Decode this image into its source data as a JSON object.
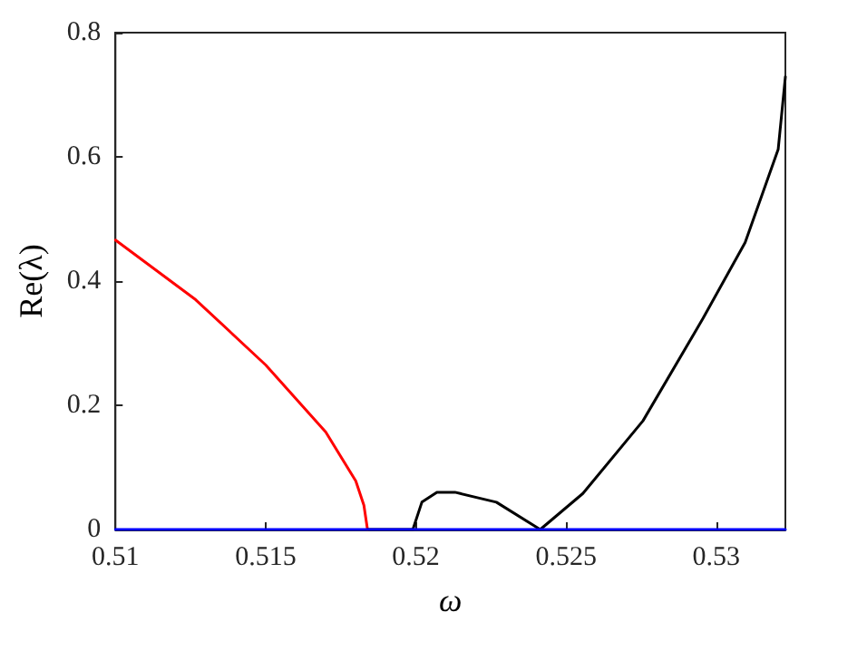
{
  "chart_data": {
    "type": "line",
    "xlabel": "ω",
    "ylabel": "Re(λ)",
    "xlim": [
      0.51,
      0.5323
    ],
    "xticks": [
      0.51,
      0.515,
      0.52,
      0.525,
      0.53
    ],
    "ylim": [
      0,
      0.8
    ],
    "yticks": [
      0,
      0.2,
      0.4,
      0.6,
      0.8
    ],
    "grid": false,
    "marker": "none",
    "line_style": "solid",
    "series": [
      {
        "color": "#ff0000",
        "x": [
          0.51,
          0.51267,
          0.515,
          0.517,
          0.518,
          0.51827,
          0.51839
        ],
        "values": [
          0.466,
          0.37,
          0.265,
          0.157,
          0.078,
          0.039,
          0
        ]
      },
      {
        "color": "#000000",
        "x": [
          0.51839,
          0.5199,
          0.5202,
          0.5207,
          0.5213,
          0.52268,
          0.52414,
          0.52556,
          0.52756,
          0.52956,
          0.53096,
          0.53206,
          0.5323
        ],
        "values": [
          0,
          0,
          0.044,
          0.06,
          0.06,
          0.044,
          0,
          0.058,
          0.175,
          0.34,
          0.462,
          0.612,
          0.729
        ]
      },
      {
        "color": "#0000ff",
        "x": [
          0.51,
          0.5323
        ],
        "values": [
          0,
          0
        ]
      }
    ]
  }
}
